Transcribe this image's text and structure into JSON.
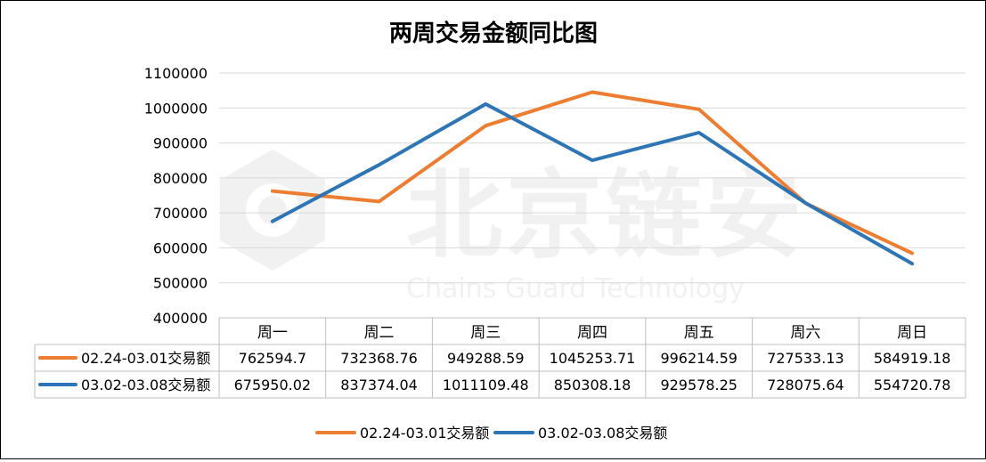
{
  "chart_data": {
    "type": "line",
    "title": "两周交易金额同比图",
    "categories": [
      "周一",
      "周二",
      "周三",
      "周四",
      "周五",
      "周六",
      "周日"
    ],
    "series": [
      {
        "name": "02.24-03.01交易额",
        "color": "#ED7D31",
        "values": [
          762594.7,
          732368.76,
          949288.59,
          1045253.71,
          996214.59,
          727533.13,
          584919.18
        ],
        "labels": [
          "762594.7",
          "732368.76",
          "949288.59",
          "1045253.71",
          "996214.59",
          "727533.13",
          "584919.18"
        ]
      },
      {
        "name": "03.02-03.08交易额",
        "color": "#2E75B6",
        "values": [
          675950.02,
          837374.04,
          1011109.48,
          850308.18,
          929578.25,
          728075.64,
          554720.78
        ],
        "labels": [
          "675950.02",
          "837374.04",
          "1011109.48",
          "850308.18",
          "929578.25",
          "728075.64",
          "554720.78"
        ]
      }
    ],
    "ylim": [
      400000,
      1100000
    ],
    "yticks": [
      "400000",
      "500000",
      "600000",
      "700000",
      "800000",
      "900000",
      "1000000",
      "1100000"
    ],
    "grid": true,
    "legend": "bottom",
    "data_table": true
  },
  "watermark": {
    "text_cn": "北京链安",
    "text_en": "Chains Guard Technology"
  }
}
